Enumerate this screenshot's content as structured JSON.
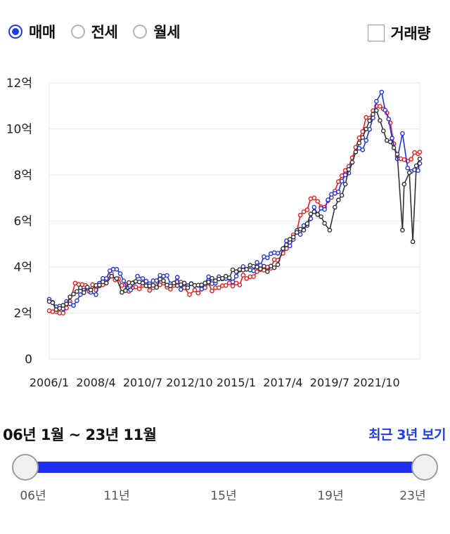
{
  "filters": {
    "options": [
      {
        "label": "매매",
        "selected": true
      },
      {
        "label": "전세",
        "selected": false
      },
      {
        "label": "월세",
        "selected": false
      }
    ],
    "volume_label": "거래량",
    "volume_checked": false
  },
  "chart_data": {
    "type": "line",
    "title": "",
    "xlabel": "",
    "ylabel": "",
    "ylim": [
      0,
      12
    ],
    "xlim": [
      "2006/1",
      "2023/11"
    ],
    "grid": true,
    "y_ticks": [
      {
        "value": 0,
        "label": "0"
      },
      {
        "value": 2,
        "label": "2억"
      },
      {
        "value": 4,
        "label": "4억"
      },
      {
        "value": 6,
        "label": "6억"
      },
      {
        "value": 8,
        "label": "8억"
      },
      {
        "value": 10,
        "label": "10억"
      },
      {
        "value": 12,
        "label": "12억"
      }
    ],
    "x_tick_labels": [
      "2006/1",
      "2008/4",
      "2010/7",
      "2012/10",
      "2015/1",
      "2017/4",
      "2019/7",
      "2021/10"
    ],
    "series_colors": [
      "#ee1c1c",
      "#2233ee",
      "#333333"
    ],
    "series": [
      {
        "anchors": [
          [
            "2006/1",
            2.1
          ],
          [
            "2006/7",
            2.0
          ],
          [
            "2007/1",
            2.5
          ],
          [
            "2007/4",
            3.3
          ],
          [
            "2007/10",
            3.2
          ],
          [
            "2008/4",
            3.0
          ],
          [
            "2008/10",
            3.4
          ],
          [
            "2009/1",
            3.7
          ],
          [
            "2009/7",
            3.2
          ],
          [
            "2010/1",
            3.1
          ],
          [
            "2010/7",
            3.2
          ],
          [
            "2011/1",
            3.1
          ],
          [
            "2011/7",
            3.3
          ],
          [
            "2012/1",
            3.2
          ],
          [
            "2012/7",
            3.1
          ],
          [
            "2012/10",
            2.8
          ],
          [
            "2013/1",
            3.0
          ],
          [
            "2013/7",
            3.1
          ],
          [
            "2014/1",
            3.1
          ],
          [
            "2014/7",
            3.2
          ],
          [
            "2015/1",
            3.3
          ],
          [
            "2015/7",
            3.5
          ],
          [
            "2016/1",
            3.8
          ],
          [
            "2016/7",
            4.0
          ],
          [
            "2017/1",
            4.3
          ],
          [
            "2017/4",
            4.6
          ],
          [
            "2017/10",
            5.4
          ],
          [
            "2018/4",
            6.4
          ],
          [
            "2018/10",
            7.0
          ],
          [
            "2019/4",
            6.6
          ],
          [
            "2019/10",
            7.3
          ],
          [
            "2020/4",
            8.2
          ],
          [
            "2020/10",
            9.2
          ],
          [
            "2021/4",
            10.5
          ],
          [
            "2021/10",
            11.0
          ],
          [
            "2022/4",
            10.7
          ],
          [
            "2022/10",
            8.8
          ],
          [
            "2023/4",
            8.6
          ],
          [
            "2023/11",
            9.0
          ]
        ],
        "noise": 0.22
      },
      {
        "anchors": [
          [
            "2006/1",
            2.6
          ],
          [
            "2006/7",
            2.3
          ],
          [
            "2007/1",
            2.4
          ],
          [
            "2007/7",
            2.8
          ],
          [
            "2008/1",
            2.9
          ],
          [
            "2008/4",
            2.8
          ],
          [
            "2008/10",
            3.5
          ],
          [
            "2009/4",
            3.9
          ],
          [
            "2009/10",
            3.1
          ],
          [
            "2010/4",
            3.6
          ],
          [
            "2010/7",
            3.5
          ],
          [
            "2011/1",
            3.4
          ],
          [
            "2011/7",
            3.6
          ],
          [
            "2012/1",
            3.3
          ],
          [
            "2012/7",
            3.3
          ],
          [
            "2013/1",
            3.2
          ],
          [
            "2013/7",
            3.3
          ],
          [
            "2014/1",
            3.3
          ],
          [
            "2014/7",
            3.5
          ],
          [
            "2015/1",
            3.6
          ],
          [
            "2015/7",
            3.9
          ],
          [
            "2016/1",
            4.2
          ],
          [
            "2016/7",
            4.4
          ],
          [
            "2017/1",
            4.6
          ],
          [
            "2017/4",
            4.8
          ],
          [
            "2017/10",
            5.2
          ],
          [
            "2018/4",
            5.8
          ],
          [
            "2018/10",
            6.6
          ],
          [
            "2019/4",
            6.5
          ],
          [
            "2019/10",
            7.2
          ],
          [
            "2020/4",
            8.0
          ],
          [
            "2020/10",
            9.0
          ],
          [
            "2021/4",
            9.5
          ],
          [
            "2021/10",
            11.2
          ],
          [
            "2022/1",
            11.6
          ],
          [
            "2022/7",
            9.6
          ],
          [
            "2022/10",
            8.7
          ],
          [
            "2023/1",
            9.8
          ],
          [
            "2023/4",
            8.3
          ],
          [
            "2023/11",
            8.5
          ]
        ],
        "noise": 0.28
      },
      {
        "anchors": [
          [
            "2006/1",
            2.5
          ],
          [
            "2006/7",
            2.2
          ],
          [
            "2007/1",
            2.7
          ],
          [
            "2007/7",
            3.1
          ],
          [
            "2008/1",
            3.0
          ],
          [
            "2008/4",
            3.2
          ],
          [
            "2008/10",
            3.3
          ],
          [
            "2009/1",
            3.6
          ],
          [
            "2009/4",
            3.5
          ],
          [
            "2009/7",
            2.9
          ],
          [
            "2010/1",
            3.3
          ],
          [
            "2010/7",
            3.3
          ],
          [
            "2011/1",
            3.2
          ],
          [
            "2011/7",
            3.4
          ],
          [
            "2012/1",
            3.3
          ],
          [
            "2012/7",
            3.3
          ],
          [
            "2013/1",
            3.2
          ],
          [
            "2013/7",
            3.3
          ],
          [
            "2014/1",
            3.4
          ],
          [
            "2014/7",
            3.6
          ],
          [
            "2015/1",
            3.8
          ],
          [
            "2015/7",
            3.9
          ],
          [
            "2016/1",
            4.0
          ],
          [
            "2016/7",
            3.8
          ],
          [
            "2017/1",
            4.1
          ],
          [
            "2017/4",
            4.8
          ],
          [
            "2017/10",
            5.3
          ],
          [
            "2018/4",
            5.6
          ],
          [
            "2018/10",
            6.4
          ],
          [
            "2019/4",
            5.9
          ],
          [
            "2019/7",
            5.6
          ],
          [
            "2019/10",
            6.6
          ],
          [
            "2020/4",
            7.6
          ],
          [
            "2020/10",
            9.0
          ],
          [
            "2021/4",
            10.0
          ],
          [
            "2021/10",
            10.8
          ],
          [
            "2022/4",
            9.5
          ],
          [
            "2022/10",
            8.9
          ],
          [
            "2023/1",
            5.6
          ],
          [
            "2023/2",
            7.6
          ],
          [
            "2023/5",
            8.1
          ],
          [
            "2023/7",
            5.1
          ],
          [
            "2023/9",
            8.4
          ],
          [
            "2023/11",
            8.7
          ]
        ],
        "noise": 0.18
      }
    ]
  },
  "period": {
    "range_label": "06년 1월 ~ 23년 11월",
    "recent_label": "최근 3년 보기",
    "start": "2006/1",
    "end": "2023/11",
    "ticks": [
      "06년",
      "11년",
      "15년",
      "19년",
      "23년"
    ],
    "tick_years": [
      2006,
      2011,
      2015,
      2019,
      2023
    ]
  }
}
